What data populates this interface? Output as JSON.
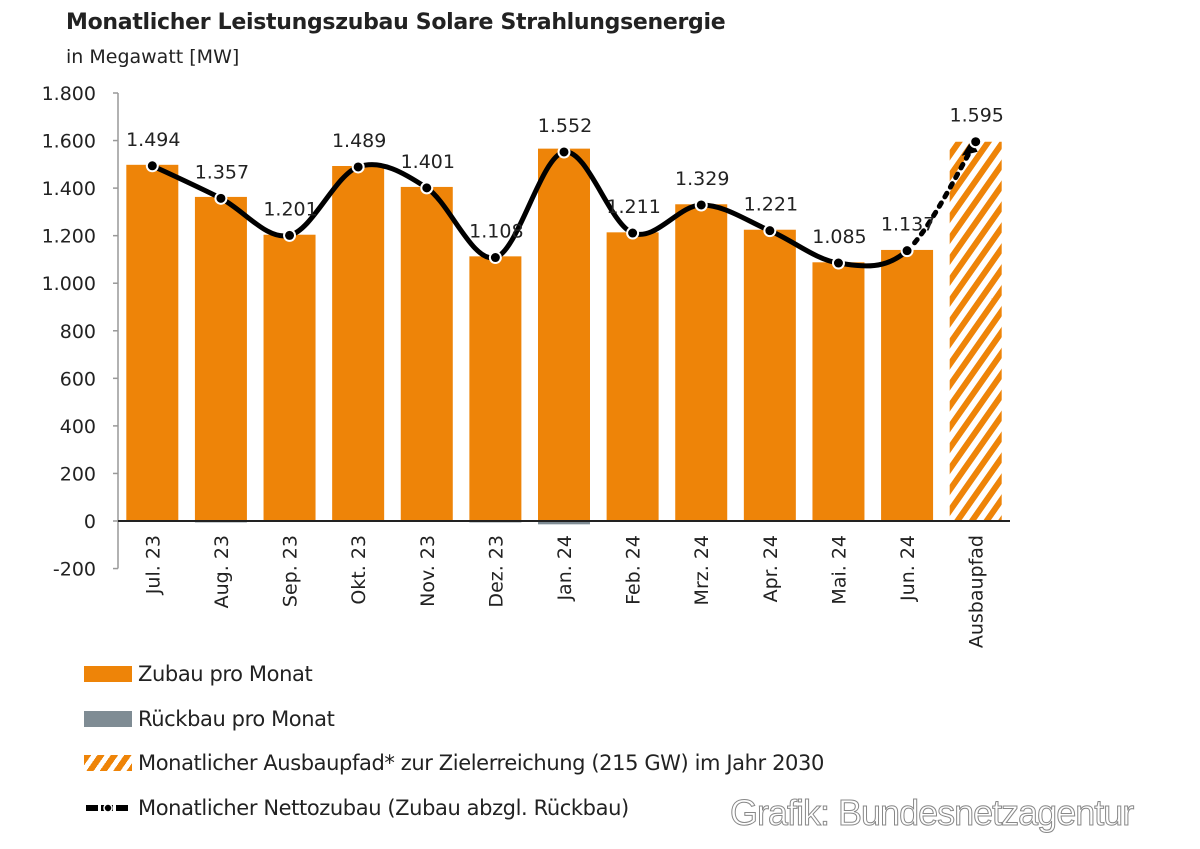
{
  "chart_data": {
    "type": "bar",
    "title": "Monatlicher Leistungszubau Solare Strahlungsenergie",
    "subtitle": "in Megawatt [MW]",
    "categories": [
      "Jul. 23",
      "Aug. 23",
      "Sep. 23",
      "Okt. 23",
      "Nov. 23",
      "Dez. 23",
      "Jan. 24",
      "Feb. 24",
      "Mrz. 24",
      "Apr. 24",
      "Mai. 24",
      "Jun. 24",
      "Ausbaupfad"
    ],
    "ylim": [
      -200,
      1800
    ],
    "yticks": [
      -200,
      0,
      200,
      400,
      600,
      800,
      1000,
      1200,
      1400,
      1600,
      1800
    ],
    "ytick_labels": [
      "-200",
      "0",
      "200",
      "400",
      "600",
      "800",
      "1.000",
      "1.200",
      "1.400",
      "1.600",
      "1.800"
    ],
    "series": [
      {
        "name": "Zubau pro Monat",
        "kind": "bar",
        "color": "#EE8408",
        "values": [
          1498,
          1363,
          1204,
          1493,
          1405,
          1113,
          1566,
          1214,
          1332,
          1225,
          1088,
          1140,
          null
        ]
      },
      {
        "name": "Rückbau pro Monat",
        "kind": "bar",
        "color": "#7F8C94",
        "values": [
          -3,
          -6,
          -3,
          -3,
          -3,
          -6,
          -14,
          -3,
          -3,
          -3,
          -3,
          -3,
          null
        ]
      },
      {
        "name": "Monatlicher Ausbaupfad* zur Zielerreichung (215 GW) im Jahr 2030",
        "kind": "bar-hatched",
        "color": "#EE8408",
        "values": [
          null,
          null,
          null,
          null,
          null,
          null,
          null,
          null,
          null,
          null,
          null,
          null,
          1595
        ]
      },
      {
        "name": "Monatlicher Nettozubau (Zubau abzgl. Rückbau)",
        "kind": "line",
        "color": "#000000",
        "values": [
          1494,
          1357,
          1201,
          1489,
          1401,
          1108,
          1552,
          1211,
          1329,
          1221,
          1085,
          1137,
          1595
        ]
      }
    ],
    "data_labels": [
      "1.494",
      "1.357",
      "1.201",
      "1.489",
      "1.401",
      "1.108",
      "1.552",
      "1.211",
      "1.329",
      "1.221",
      "1.085",
      "1.137",
      "1.595"
    ],
    "legend_position": "bottom-left",
    "grid": false
  },
  "watermark": "Grafik: Bundesnetzagentur"
}
